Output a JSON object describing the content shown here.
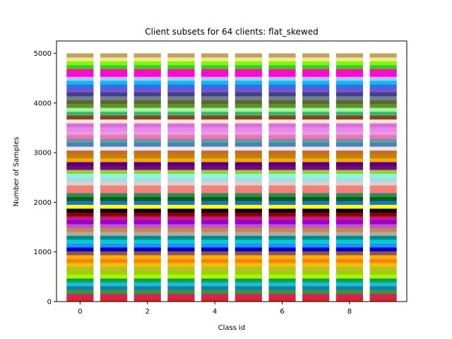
{
  "chart_data": {
    "type": "bar",
    "stacked": true,
    "title": "Client subsets for 64 clients: flat_skewed",
    "xlabel": "Class id",
    "ylabel": "Number of Samples",
    "categories": [
      0,
      1,
      2,
      3,
      4,
      5,
      6,
      7,
      8,
      9
    ],
    "x_ticks": [
      "0",
      "2",
      "4",
      "6",
      "8"
    ],
    "y_ticks": [
      "0",
      "1000",
      "2000",
      "3000",
      "4000",
      "5000"
    ],
    "xlim": [
      -0.7,
      9.7
    ],
    "ylim": [
      0,
      5250
    ],
    "grid": false,
    "total_per_class": 5000,
    "segments_per_bar": 64,
    "samples_per_client_per_class": 78.125,
    "segment_colors": [
      "#d62728",
      "#e41a5b",
      "#2ca02c",
      "#1f77b4",
      "#17becf",
      "#00a651",
      "#b4f000",
      "#9ad400",
      "#bcbd22",
      "#e6c300",
      "#ff7f0e",
      "#ffb000",
      "#8c564b",
      "#0000cd",
      "#1e90ff",
      "#00ced1",
      "#008b8b",
      "#a9a9a9",
      "#cd853f",
      "#ba55d3",
      "#9400d3",
      "#c71585",
      "#8b0000",
      "#000000",
      "#ffff00",
      "#1e6fd9",
      "#006400",
      "#2e8b57",
      "#f08080",
      "#fa8072",
      "#d3d3d3",
      "#add8e6",
      "#7fffd4",
      "#9acd32",
      "#800080",
      "#4b0082",
      "#ffa500",
      "#b8860b",
      "#d2691e",
      "#e6e6fa",
      "#4682b4",
      "#5f9ea0",
      "#ff69b4",
      "#dda0dd",
      "#ee82ee",
      "#da70d6",
      "#ffe4e1",
      "#8b4513",
      "#3cb371",
      "#98fb98",
      "#6b8e23",
      "#556b2f",
      "#708090",
      "#483d8b",
      "#6a5acd",
      "#4169e1",
      "#00bfff",
      "#b0c4de",
      "#ff00ff",
      "#ff1493",
      "#32cd32",
      "#7cfc00",
      "#f0e68c",
      "#c0a060"
    ]
  }
}
